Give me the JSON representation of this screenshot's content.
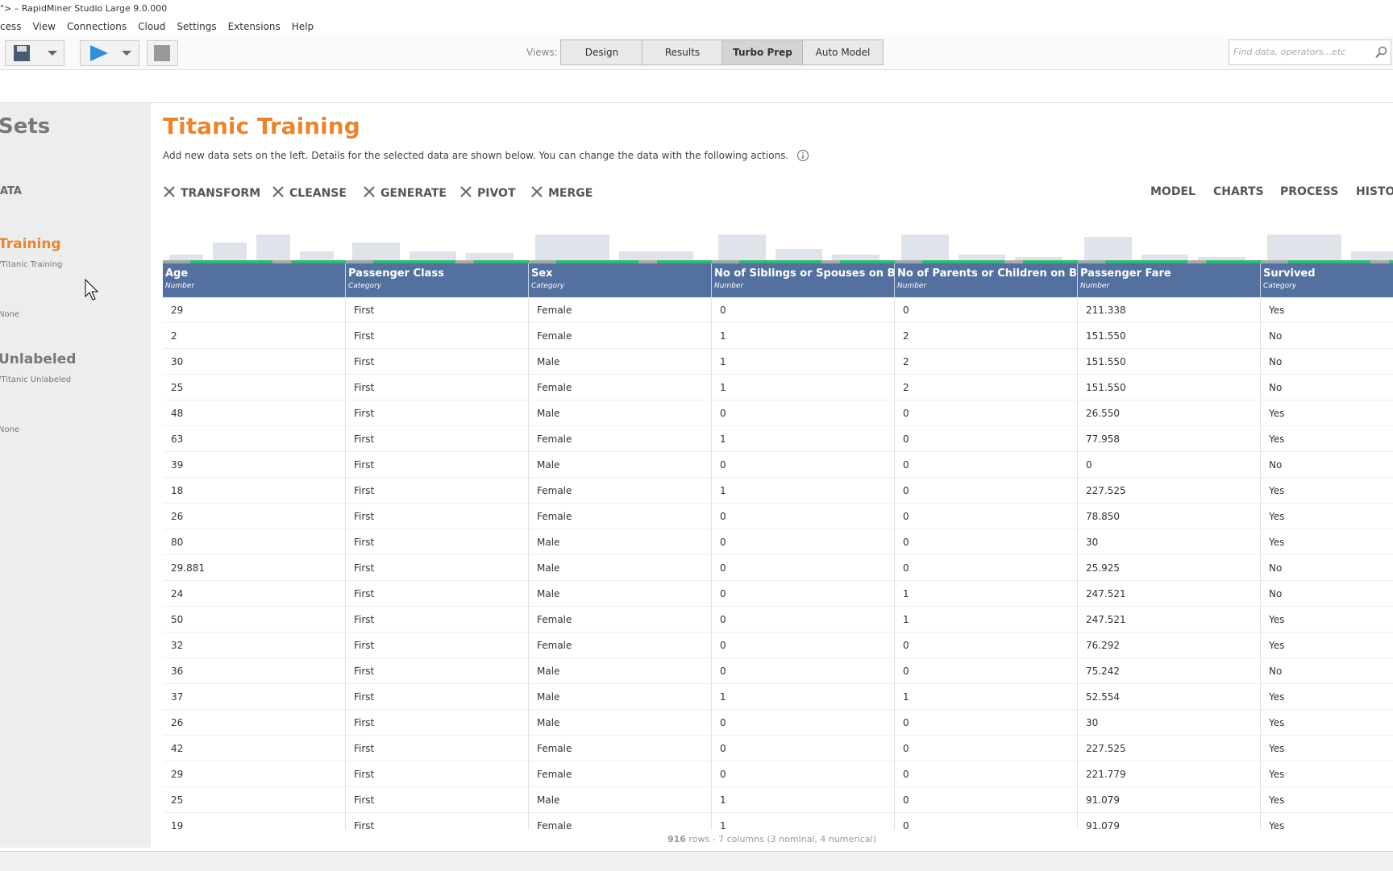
{
  "window": {
    "title": "\"> – RapidMiner Studio Large 9.0.000"
  },
  "menu": [
    "cess",
    "View",
    "Connections",
    "Cloud",
    "Settings",
    "Extensions",
    "Help"
  ],
  "views": {
    "label": "Views:",
    "tabs": [
      "Design",
      "Results",
      "Turbo Prep",
      "Auto Model"
    ],
    "active": 2
  },
  "search_placeholder": "Find data, operators...etc",
  "sidebar": {
    "heading": "Sets",
    "section": "ATA",
    "items": [
      {
        "name": "Training",
        "path": "/Titanic Training",
        "meta": "None"
      },
      {
        "name": "Unlabeled",
        "path": "/Titanic Unlabeled",
        "meta": "None"
      }
    ]
  },
  "main": {
    "title": "Titanic Training",
    "description": "Add new data sets on the left.  Details for the selected data are shown below.  You can change the data with the following actions.",
    "actions": [
      "TRANSFORM",
      "CLEANSE",
      "GENERATE",
      "PIVOT",
      "MERGE"
    ],
    "right_actions": [
      "MODEL",
      "CHARTS",
      "PROCESS",
      "HISTORY"
    ]
  },
  "table": {
    "columns": [
      {
        "name": "Age",
        "type": "Number"
      },
      {
        "name": "Passenger Class",
        "type": "Category"
      },
      {
        "name": "Sex",
        "type": "Category"
      },
      {
        "name": "No of Siblings or Spouses on Bo...",
        "type": "Number"
      },
      {
        "name": "No of Parents or Children on Bo...",
        "type": "Number"
      },
      {
        "name": "Passenger Fare",
        "type": "Number"
      },
      {
        "name": "Survived",
        "type": "Category"
      }
    ],
    "rows": [
      [
        "29",
        "First",
        "Female",
        "0",
        "0",
        "211.338",
        "Yes"
      ],
      [
        "2",
        "First",
        "Female",
        "1",
        "2",
        "151.550",
        "No"
      ],
      [
        "30",
        "First",
        "Male",
        "1",
        "2",
        "151.550",
        "No"
      ],
      [
        "25",
        "First",
        "Female",
        "1",
        "2",
        "151.550",
        "No"
      ],
      [
        "48",
        "First",
        "Male",
        "0",
        "0",
        "26.550",
        "Yes"
      ],
      [
        "63",
        "First",
        "Female",
        "1",
        "0",
        "77.958",
        "Yes"
      ],
      [
        "39",
        "First",
        "Male",
        "0",
        "0",
        "0",
        "No"
      ],
      [
        "18",
        "First",
        "Female",
        "1",
        "0",
        "227.525",
        "Yes"
      ],
      [
        "26",
        "First",
        "Female",
        "0",
        "0",
        "78.850",
        "Yes"
      ],
      [
        "80",
        "First",
        "Male",
        "0",
        "0",
        "30",
        "Yes"
      ],
      [
        "29.881",
        "First",
        "Male",
        "0",
        "0",
        "25.925",
        "No"
      ],
      [
        "24",
        "First",
        "Male",
        "0",
        "1",
        "247.521",
        "No"
      ],
      [
        "50",
        "First",
        "Female",
        "0",
        "1",
        "247.521",
        "Yes"
      ],
      [
        "32",
        "First",
        "Female",
        "0",
        "0",
        "76.292",
        "Yes"
      ],
      [
        "36",
        "First",
        "Male",
        "0",
        "0",
        "75.242",
        "No"
      ],
      [
        "37",
        "First",
        "Male",
        "1",
        "1",
        "52.554",
        "Yes"
      ],
      [
        "26",
        "First",
        "Male",
        "0",
        "0",
        "30",
        "Yes"
      ],
      [
        "42",
        "First",
        "Female",
        "0",
        "0",
        "227.525",
        "Yes"
      ],
      [
        "29",
        "First",
        "Female",
        "0",
        "0",
        "221.779",
        "Yes"
      ],
      [
        "25",
        "First",
        "Male",
        "1",
        "0",
        "91.079",
        "Yes"
      ],
      [
        "19",
        "First",
        "Female",
        "1",
        "0",
        "91.079",
        "Yes"
      ]
    ]
  },
  "footer": {
    "count": "916",
    "summary": " rows - 7 columns (3 nominal, 4 numerical)"
  }
}
